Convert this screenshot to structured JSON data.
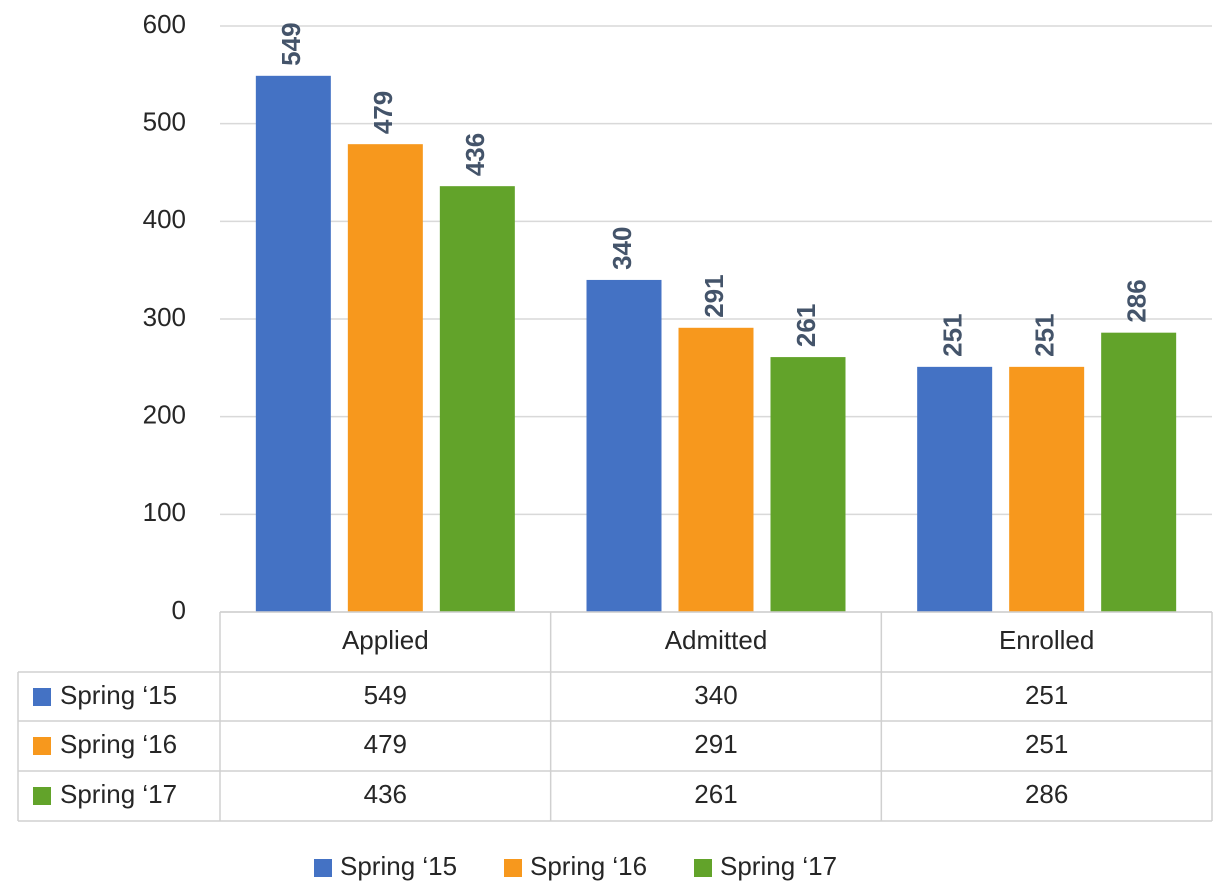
{
  "chart_data": {
    "type": "bar",
    "categories": [
      "Applied",
      "Admitted",
      "Enrolled"
    ],
    "series": [
      {
        "name": "Spring ‘15",
        "color": "#4472c4",
        "values": [
          549,
          340,
          251
        ]
      },
      {
        "name": "Spring ‘16",
        "color": "#f7981d",
        "values": [
          479,
          291,
          251
        ]
      },
      {
        "name": "Spring ‘17",
        "color": "#62a32a",
        "values": [
          436,
          261,
          286
        ]
      }
    ],
    "ylim": [
      0,
      600
    ],
    "yticks": [
      0,
      100,
      200,
      300,
      400,
      500,
      600
    ],
    "grid": true,
    "data_table": true,
    "legend": "bottom"
  }
}
